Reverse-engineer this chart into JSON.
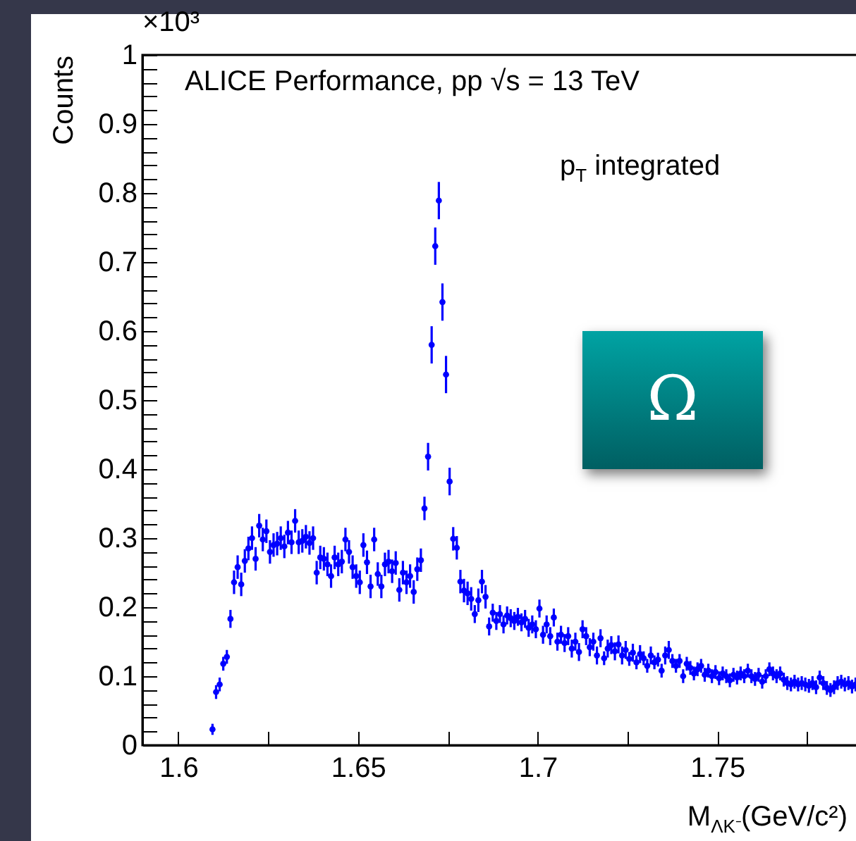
{
  "chart_data": {
    "type": "scatter",
    "xlabel": "M$_{ΛK⁻}$(GeV/c²)",
    "ylabel": "Counts",
    "annotations": [
      "×10³",
      "ALICE Performance, pp √s = 13 TeV",
      "p$_{T}$ integrated",
      "Ω"
    ],
    "xlim": [
      1.59,
      1.789
    ],
    "ylim": [
      0,
      1
    ],
    "xticks": [
      1.6,
      {
        "value": 1.625,
        "label": null
      },
      1.65,
      {
        "value": 1.675,
        "label": null
      },
      1.7,
      {
        "value": 1.725,
        "label": null
      },
      1.75,
      {
        "value": 1.775,
        "label": null
      }
    ],
    "yticks": [
      0,
      {
        "value": 0.02,
        "label": null
      },
      {
        "value": 0.04,
        "label": null
      },
      {
        "value": 0.06,
        "label": null
      },
      {
        "value": 0.08,
        "label": null
      },
      0.1,
      {
        "value": 0.12,
        "label": null
      },
      {
        "value": 0.14,
        "label": null
      },
      {
        "value": 0.16,
        "label": null
      },
      {
        "value": 0.18,
        "label": null
      },
      0.2,
      {
        "value": 0.22,
        "label": null
      },
      {
        "value": 0.24,
        "label": null
      },
      {
        "value": 0.26,
        "label": null
      },
      {
        "value": 0.28,
        "label": null
      },
      0.3,
      {
        "value": 0.32,
        "label": null
      },
      {
        "value": 0.34,
        "label": null
      },
      {
        "value": 0.36,
        "label": null
      },
      {
        "value": 0.38,
        "label": null
      },
      0.4,
      {
        "value": 0.42,
        "label": null
      },
      {
        "value": 0.44,
        "label": null
      },
      {
        "value": 0.46,
        "label": null
      },
      {
        "value": 0.48,
        "label": null
      },
      0.5,
      {
        "value": 0.52,
        "label": null
      },
      {
        "value": 0.54,
        "label": null
      },
      {
        "value": 0.56,
        "label": null
      },
      {
        "value": 0.58,
        "label": null
      },
      0.6,
      {
        "value": 0.62,
        "label": null
      },
      {
        "value": 0.64,
        "label": null
      },
      {
        "value": 0.66,
        "label": null
      },
      {
        "value": 0.68,
        "label": null
      },
      0.7,
      {
        "value": 0.72,
        "label": null
      },
      {
        "value": 0.74,
        "label": null
      },
      {
        "value": 0.76,
        "label": null
      },
      {
        "value": 0.78,
        "label": null
      },
      0.8,
      {
        "value": 0.82,
        "label": null
      },
      {
        "value": 0.84,
        "label": null
      },
      {
        "value": 0.86,
        "label": null
      },
      {
        "value": 0.88,
        "label": null
      },
      0.9,
      {
        "value": 0.92,
        "label": null
      },
      {
        "value": 0.94,
        "label": null
      },
      {
        "value": 0.96,
        "label": null
      },
      {
        "value": 0.98,
        "label": null
      },
      1
    ],
    "marker": "circle",
    "color": "#0000ff",
    "x": [
      1.6095,
      1.6105,
      1.6115,
      1.6125,
      1.6135,
      1.6145,
      1.6155,
      1.6165,
      1.6175,
      1.6185,
      1.6195,
      1.6205,
      1.6215,
      1.6225,
      1.6235,
      1.6245,
      1.6255,
      1.6265,
      1.6275,
      1.6285,
      1.6295,
      1.6305,
      1.6315,
      1.6325,
      1.6335,
      1.6345,
      1.6355,
      1.6365,
      1.6375,
      1.6385,
      1.6395,
      1.6405,
      1.6415,
      1.6425,
      1.6435,
      1.6445,
      1.6455,
      1.6465,
      1.6475,
      1.6485,
      1.6495,
      1.6505,
      1.6515,
      1.6525,
      1.6535,
      1.6545,
      1.6555,
      1.6565,
      1.6575,
      1.6585,
      1.6595,
      1.6605,
      1.6615,
      1.6625,
      1.6635,
      1.6645,
      1.6655,
      1.6665,
      1.6675,
      1.6685,
      1.6695,
      1.6705,
      1.6715,
      1.6725,
      1.6735,
      1.6745,
      1.6755,
      1.6765,
      1.6775,
      1.6785,
      1.6795,
      1.6805,
      1.6815,
      1.6825,
      1.6835,
      1.6845,
      1.6855,
      1.6865,
      1.6875,
      1.6885,
      1.6895,
      1.6905,
      1.6915,
      1.6925,
      1.6935,
      1.6945,
      1.6955,
      1.6965,
      1.6975,
      1.6985,
      1.6995,
      1.7005,
      1.7015,
      1.7025,
      1.7035,
      1.7045,
      1.7055,
      1.7065,
      1.7075,
      1.7085,
      1.7095,
      1.7105,
      1.7115,
      1.7125,
      1.7135,
      1.7145,
      1.7155,
      1.7165,
      1.7175,
      1.7185,
      1.7195,
      1.7205,
      1.7215,
      1.7225,
      1.7235,
      1.7245,
      1.7255,
      1.7265,
      1.7275,
      1.7285,
      1.7295,
      1.7305,
      1.7315,
      1.7325,
      1.7335,
      1.7345,
      1.7355,
      1.7365,
      1.7375,
      1.7385,
      1.7395,
      1.7405,
      1.7415,
      1.7425,
      1.7435,
      1.7445,
      1.7455,
      1.7465,
      1.7475,
      1.7485,
      1.7495,
      1.7505,
      1.7515,
      1.7525,
      1.7535,
      1.7545,
      1.7555,
      1.7565,
      1.7575,
      1.7585,
      1.7595,
      1.7605,
      1.7615,
      1.7625,
      1.7635,
      1.7645,
      1.7655,
      1.7665,
      1.7675,
      1.7685,
      1.7695,
      1.7705,
      1.7715,
      1.7725,
      1.7735,
      1.7745,
      1.7755,
      1.7765,
      1.7775,
      1.7785,
      1.7795,
      1.7805,
      1.7815,
      1.7825,
      1.7835,
      1.7845,
      1.7855,
      1.7865,
      1.7875,
      1.7885
    ],
    "values": [
      0.023,
      0.077,
      0.088,
      0.118,
      0.128,
      0.183,
      0.236,
      0.258,
      0.233,
      0.267,
      0.285,
      0.3,
      0.27,
      0.318,
      0.298,
      0.31,
      0.28,
      0.29,
      0.292,
      0.3,
      0.288,
      0.308,
      0.294,
      0.325,
      0.294,
      0.296,
      0.302,
      0.293,
      0.3,
      0.25,
      0.272,
      0.27,
      0.262,
      0.245,
      0.272,
      0.262,
      0.266,
      0.298,
      0.28,
      0.258,
      0.245,
      0.236,
      0.29,
      0.265,
      0.23,
      0.298,
      0.248,
      0.23,
      0.262,
      0.266,
      0.252,
      0.264,
      0.225,
      0.25,
      0.236,
      0.245,
      0.222,
      0.255,
      0.268,
      0.343,
      0.418,
      0.58,
      0.723,
      0.789,
      0.642,
      0.537,
      0.382,
      0.299,
      0.286,
      0.237,
      0.224,
      0.22,
      0.212,
      0.19,
      0.21,
      0.237,
      0.215,
      0.172,
      0.192,
      0.18,
      0.19,
      0.175,
      0.188,
      0.184,
      0.18,
      0.186,
      0.178,
      0.183,
      0.17,
      0.175,
      0.168,
      0.198,
      0.16,
      0.175,
      0.158,
      0.185,
      0.15,
      0.16,
      0.148,
      0.158,
      0.14,
      0.15,
      0.135,
      0.168,
      0.158,
      0.142,
      0.15,
      0.13,
      0.155,
      0.126,
      0.14,
      0.145,
      0.136,
      0.146,
      0.13,
      0.138,
      0.125,
      0.134,
      0.12,
      0.132,
      0.126,
      0.115,
      0.13,
      0.12,
      0.124,
      0.108,
      0.13,
      0.138,
      0.122,
      0.115,
      0.122,
      0.1,
      0.118,
      0.112,
      0.104,
      0.11,
      0.115,
      0.102,
      0.108,
      0.1,
      0.106,
      0.097,
      0.104,
      0.1,
      0.094,
      0.102,
      0.098,
      0.104,
      0.1,
      0.108,
      0.1,
      0.096,
      0.102,
      0.092,
      0.1,
      0.11,
      0.104,
      0.1,
      0.104,
      0.095,
      0.09,
      0.088,
      0.092,
      0.088,
      0.09,
      0.088,
      0.086,
      0.09,
      0.084,
      0.098,
      0.09,
      0.083,
      0.08,
      0.084,
      0.09,
      0.092,
      0.088,
      0.09,
      0.085,
      0.088
    ],
    "errors": [
      0.008,
      0.01,
      0.01,
      0.01,
      0.01,
      0.013,
      0.017,
      0.017,
      0.017,
      0.017,
      0.017,
      0.017,
      0.017,
      0.017,
      0.017,
      0.017,
      0.017,
      0.017,
      0.017,
      0.017,
      0.017,
      0.017,
      0.017,
      0.017,
      0.017,
      0.017,
      0.017,
      0.017,
      0.017,
      0.017,
      0.017,
      0.017,
      0.017,
      0.017,
      0.017,
      0.017,
      0.017,
      0.017,
      0.017,
      0.017,
      0.017,
      0.017,
      0.017,
      0.017,
      0.017,
      0.017,
      0.017,
      0.017,
      0.017,
      0.017,
      0.017,
      0.017,
      0.017,
      0.017,
      0.017,
      0.017,
      0.017,
      0.017,
      0.017,
      0.017,
      0.02,
      0.027,
      0.027,
      0.027,
      0.027,
      0.027,
      0.02,
      0.017,
      0.017,
      0.017,
      0.017,
      0.017,
      0.017,
      0.013,
      0.017,
      0.017,
      0.017,
      0.013,
      0.013,
      0.013,
      0.013,
      0.013,
      0.013,
      0.013,
      0.013,
      0.013,
      0.013,
      0.013,
      0.013,
      0.013,
      0.013,
      0.013,
      0.013,
      0.013,
      0.013,
      0.013,
      0.013,
      0.013,
      0.013,
      0.013,
      0.013,
      0.013,
      0.013,
      0.013,
      0.013,
      0.013,
      0.013,
      0.013,
      0.013,
      0.01,
      0.013,
      0.013,
      0.013,
      0.013,
      0.013,
      0.013,
      0.01,
      0.013,
      0.01,
      0.013,
      0.01,
      0.01,
      0.013,
      0.01,
      0.01,
      0.01,
      0.013,
      0.013,
      0.01,
      0.01,
      0.01,
      0.01,
      0.01,
      0.01,
      0.01,
      0.01,
      0.01,
      0.01,
      0.01,
      0.01,
      0.01,
      0.01,
      0.01,
      0.01,
      0.01,
      0.01,
      0.01,
      0.01,
      0.01,
      0.01,
      0.01,
      0.01,
      0.01,
      0.01,
      0.01,
      0.01,
      0.01,
      0.01,
      0.01,
      0.01,
      0.01,
      0.01,
      0.01,
      0.01,
      0.01,
      0.01,
      0.01,
      0.01,
      0.01,
      0.01,
      0.01,
      0.01,
      0.01,
      0.01,
      0.01,
      0.01,
      0.01,
      0.01,
      0.01,
      0.01
    ]
  }
}
